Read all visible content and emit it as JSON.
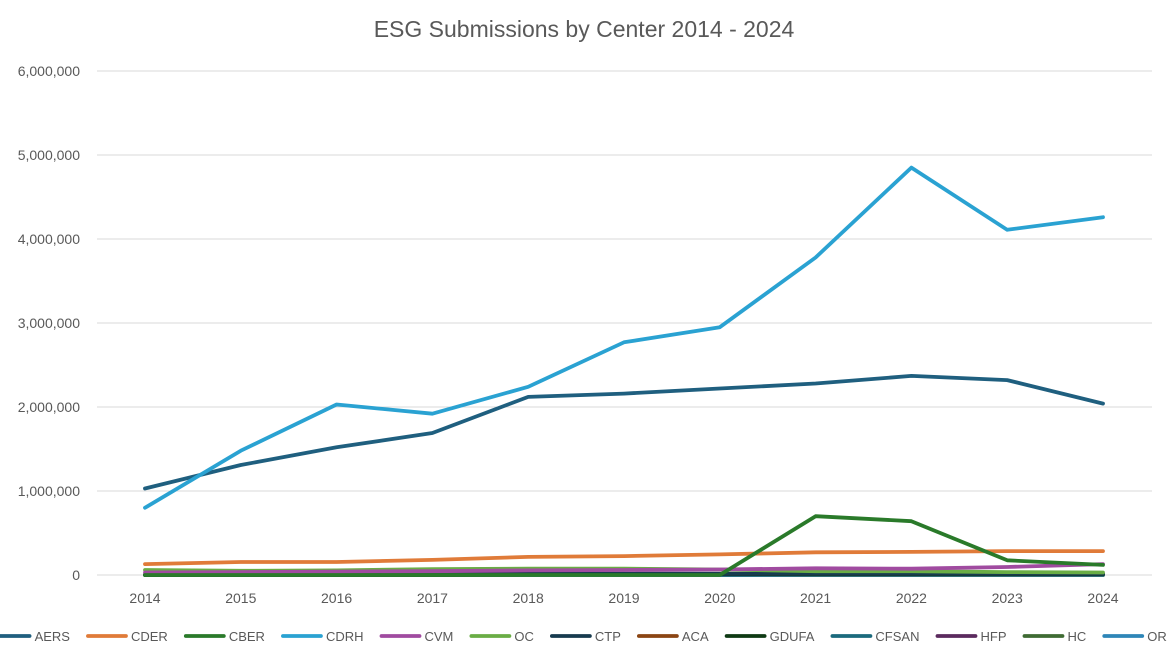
{
  "chart_data": {
    "type": "line",
    "title": "ESG Submissions by Center 2014 - 2024",
    "xlabel": "",
    "ylabel": "",
    "x": [
      "2014",
      "2015",
      "2016",
      "2017",
      "2018",
      "2019",
      "2020",
      "2021",
      "2022",
      "2023",
      "2024"
    ],
    "y_ticks": [
      "0",
      "1,000,000",
      "2,000,000",
      "3,000,000",
      "4,000,000",
      "5,000,000",
      "6,000,000"
    ],
    "ylim": [
      0,
      6000000
    ],
    "grid": true,
    "legend": "bottom",
    "series": [
      {
        "name": "AERS",
        "color": "#1f5f7f",
        "values": [
          1030000,
          1310000,
          1520000,
          1690000,
          2120000,
          2160000,
          2220000,
          2280000,
          2370000,
          2320000,
          2040000
        ]
      },
      {
        "name": "CDER",
        "color": "#e07b39",
        "values": [
          130000,
          155000,
          155000,
          180000,
          215000,
          225000,
          245000,
          270000,
          275000,
          285000,
          285000
        ]
      },
      {
        "name": "CBER",
        "color": "#2a7a2a",
        "values": [
          0,
          0,
          0,
          0,
          0,
          0,
          0,
          700000,
          640000,
          175000,
          120000
        ]
      },
      {
        "name": "CDRH",
        "color": "#2aa2d2",
        "values": [
          800000,
          1480000,
          2030000,
          1920000,
          2240000,
          2770000,
          2950000,
          3780000,
          4850000,
          4110000,
          4260000
        ]
      },
      {
        "name": "CVM",
        "color": "#a04ba0",
        "values": [
          30000,
          35000,
          40000,
          45000,
          55000,
          60000,
          65000,
          80000,
          75000,
          95000,
          130000
        ]
      },
      {
        "name": "OC",
        "color": "#6aad45",
        "values": [
          60000,
          50000,
          55000,
          70000,
          75000,
          75000,
          65000,
          45000,
          45000,
          35000,
          30000
        ]
      },
      {
        "name": "CTP",
        "color": "#173b4f",
        "values": [
          5000,
          8000,
          10000,
          12000,
          15000,
          15000,
          14000,
          15000,
          16000,
          15000,
          14000
        ]
      },
      {
        "name": "ACA",
        "color": "#8b4513",
        "values": [
          0,
          0,
          0,
          0,
          0,
          0,
          0,
          0,
          0,
          0,
          0
        ]
      },
      {
        "name": "GDUFA",
        "color": "#0f3a14",
        "values": [
          0,
          0,
          0,
          0,
          5000,
          6000,
          8000,
          9000,
          10000,
          10000,
          10000
        ]
      },
      {
        "name": "CFSAN",
        "color": "#1b6a7d",
        "values": [
          0,
          0,
          0,
          0,
          0,
          0,
          0,
          0,
          0,
          0,
          0
        ]
      },
      {
        "name": "HFP",
        "color": "#5b2a5e",
        "values": [
          0,
          0,
          0,
          0,
          0,
          0,
          0,
          0,
          0,
          0,
          0
        ]
      },
      {
        "name": "HC",
        "color": "#3f6b33",
        "values": [
          0,
          0,
          0,
          0,
          0,
          0,
          0,
          0,
          0,
          0,
          0
        ]
      },
      {
        "name": "ORA",
        "color": "#2e86b8",
        "values": [
          0,
          0,
          0,
          0,
          0,
          0,
          0,
          3000,
          3000,
          3000,
          3000
        ]
      }
    ]
  }
}
